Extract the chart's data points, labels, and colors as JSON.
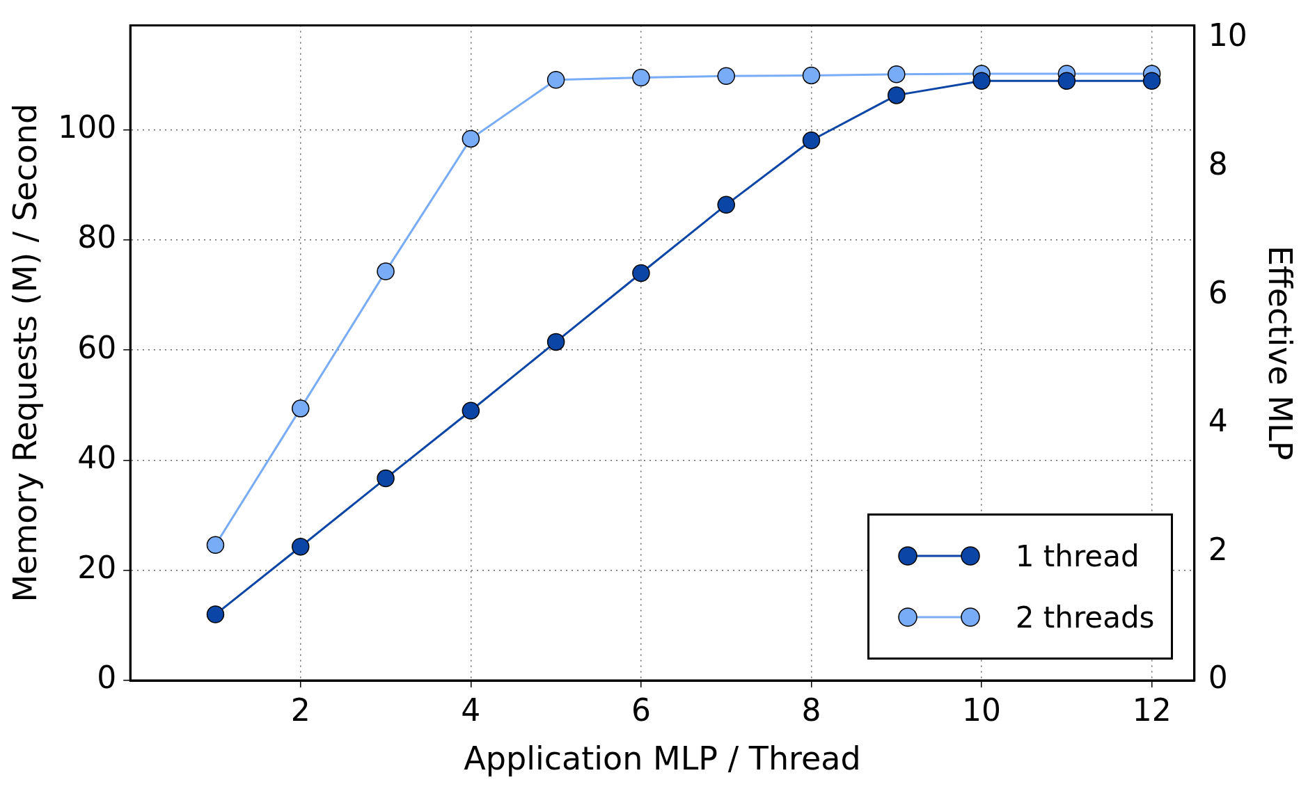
{
  "chart_data": {
    "type": "line",
    "xlabel": "Application MLP / Thread",
    "ylabel": "Memory Requests (M) / Second",
    "y2label": "Effective MLP",
    "x": [
      1,
      2,
      3,
      4,
      5,
      6,
      7,
      8,
      9,
      10,
      11,
      12
    ],
    "series": [
      {
        "name": "1 thread",
        "color": "#0b45a5",
        "values": [
          12.0,
          24.3,
          36.7,
          49.0,
          61.5,
          74.0,
          86.4,
          98.1,
          106.3,
          108.9,
          108.9,
          108.9
        ]
      },
      {
        "name": "2 threads",
        "color": "#79acf7",
        "values": [
          24.6,
          49.4,
          74.3,
          98.4,
          109.1,
          109.5,
          109.8,
          109.9,
          110.1,
          110.2,
          110.2,
          110.2
        ]
      }
    ],
    "xlim": [
      0,
      12.5
    ],
    "xticks": [
      2,
      4,
      6,
      8,
      10,
      12
    ],
    "ylim": [
      0,
      119
    ],
    "yticks": [
      0,
      20,
      40,
      60,
      80,
      100
    ],
    "y2lim": [
      0,
      10.2
    ],
    "y2ticks": [
      0,
      2,
      4,
      6,
      8,
      10
    ],
    "grid": true,
    "legend": "bottom right",
    "marker": "circle",
    "line_style": "solid"
  }
}
